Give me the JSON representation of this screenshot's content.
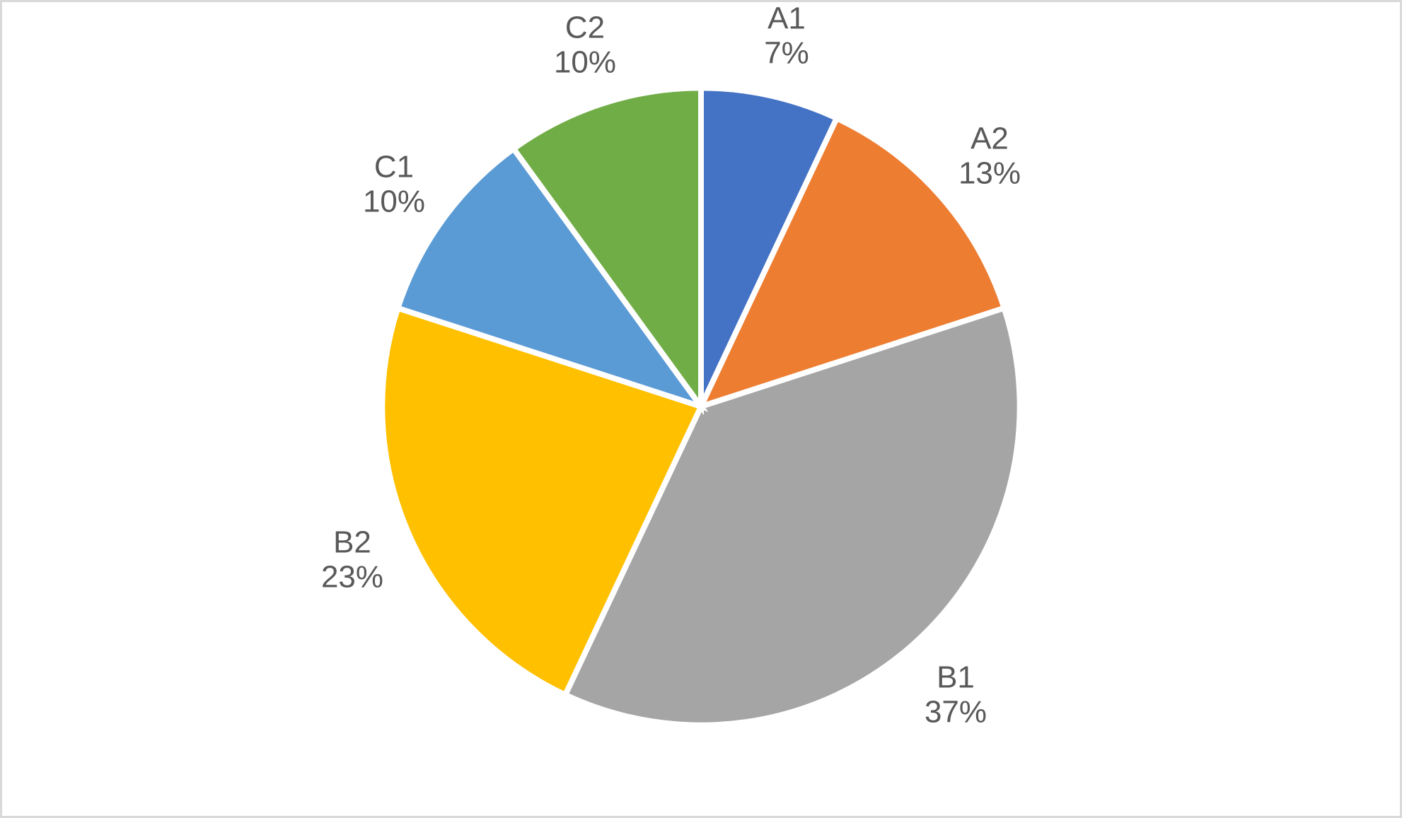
{
  "frame": {
    "background_color": "#ffffff",
    "border_color": "#d9d9d9"
  },
  "chart_data": {
    "type": "pie",
    "start_angle_deg": 0,
    "direction": "clockwise",
    "label_position": "outside-end",
    "label_color": "#595959",
    "slice_border_color": "#ffffff",
    "categories": [
      "A1",
      "A2",
      "B1",
      "B2",
      "C1",
      "C2"
    ],
    "values": [
      7,
      13,
      37,
      23,
      10,
      10
    ],
    "segments": [
      {
        "label": "A1",
        "value": 7,
        "percent_text": "7%",
        "color": "#4472c4"
      },
      {
        "label": "A2",
        "value": 13,
        "percent_text": "13%",
        "color": "#ed7d31"
      },
      {
        "label": "B1",
        "value": 37,
        "percent_text": "37%",
        "color": "#a5a5a5"
      },
      {
        "label": "B2",
        "value": 23,
        "percent_text": "23%",
        "color": "#ffc000"
      },
      {
        "label": "C1",
        "value": 10,
        "percent_text": "10%",
        "color": "#5b9bd5"
      },
      {
        "label": "C2",
        "value": 10,
        "percent_text": "10%",
        "color": "#70ad47"
      }
    ]
  }
}
